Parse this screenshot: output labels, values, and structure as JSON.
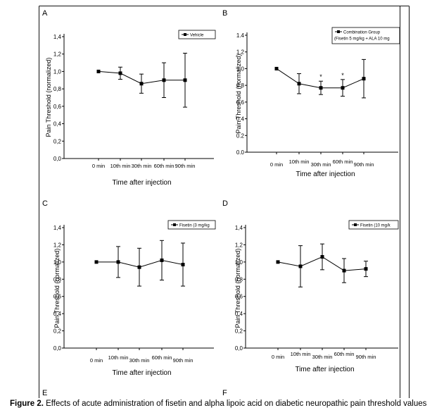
{
  "figure": {
    "panel_letters": [
      "A",
      "B",
      "C",
      "D",
      "E",
      "F"
    ],
    "caption_label": "Figure 2.",
    "caption_text": "Effects of acute administration of fisetin and alpha lipoic acid on diabetic neuropathic pain threshold values"
  },
  "chart_data": [
    {
      "type": "line",
      "panel": "A",
      "ylabel": "Pain Threshold (normalized)",
      "xlabel": "Time after injection",
      "categories": [
        "0 min",
        "10th min",
        "30th min",
        "60th min",
        "90th min"
      ],
      "yticks": [
        "0,0",
        "0,2",
        "0,4",
        "0,6",
        "0,8",
        "1,0",
        "1,2",
        "1,4"
      ],
      "ylim": [
        0,
        1.4
      ],
      "legend": {
        "position": "top-right",
        "lines": [
          "Vehicle"
        ]
      },
      "series": [
        {
          "name": "Vehicle",
          "values": [
            1.0,
            0.98,
            0.86,
            0.9,
            0.9
          ],
          "error": [
            0,
            0.07,
            0.11,
            0.2,
            0.31
          ]
        }
      ],
      "annotations": []
    },
    {
      "type": "line",
      "panel": "B",
      "ylabel": "Pain Threshold (normalized)",
      "xlabel": "Time after injection",
      "categories": [
        "0 min",
        "10th min",
        "30th min",
        "60th min",
        "90th min"
      ],
      "yticks": [
        "0.0",
        "0.2",
        "0.4",
        "0.6",
        "0.8",
        "1.0",
        "1.2",
        "1.4"
      ],
      "ylim": [
        0,
        1.4
      ],
      "legend": {
        "position": "top-right",
        "lines": [
          "Combination Group",
          "(Fisetin 5 mg/kg + ALA 10 mg"
        ]
      },
      "series": [
        {
          "name": "Combination Group",
          "values": [
            1.0,
            0.82,
            0.77,
            0.77,
            0.88
          ],
          "error": [
            0,
            0.12,
            0.08,
            0.1,
            0.23
          ]
        }
      ],
      "annotations": [
        {
          "category": "30th min",
          "text": "*"
        },
        {
          "category": "60th min",
          "text": "*"
        }
      ]
    },
    {
      "type": "line",
      "panel": "C",
      "ylabel": "Pain Threshold (normalized)",
      "xlabel": "Time after injection",
      "categories": [
        "0 min",
        "10th min",
        "30th min",
        "60th min",
        "90th min"
      ],
      "yticks": [
        "0,0",
        "0,2",
        "0,4",
        "0,6",
        "0,8",
        "1,0",
        "1,2",
        "1,4"
      ],
      "ylim": [
        0,
        1.4
      ],
      "legend": {
        "position": "top-right",
        "lines": [
          "Fisetin (3 mg/kg"
        ]
      },
      "series": [
        {
          "name": "Fisetin (3 mg/kg",
          "values": [
            1.0,
            1.0,
            0.94,
            1.02,
            0.97
          ],
          "error": [
            0,
            0.18,
            0.22,
            0.23,
            0.25
          ]
        }
      ],
      "annotations": []
    },
    {
      "type": "line",
      "panel": "D",
      "ylabel": "Pain Threshold (normalized)",
      "xlabel": "Time after injection",
      "categories": [
        "0 min",
        "10th min",
        "30th min",
        "60th min",
        "90th min"
      ],
      "yticks": [
        "0,0",
        "0,2",
        "0,4",
        "0,6",
        "0,8",
        "1,0",
        "1,2",
        "1,4"
      ],
      "ylim": [
        0,
        1.4
      ],
      "legend": {
        "position": "top-right",
        "lines": [
          "Fisetin (10 mg/k"
        ]
      },
      "series": [
        {
          "name": "Fisetin (10 mg/k",
          "values": [
            1.0,
            0.95,
            1.06,
            0.9,
            0.92
          ],
          "error": [
            0,
            0.24,
            0.15,
            0.14,
            0.09
          ]
        }
      ],
      "annotations": []
    }
  ]
}
